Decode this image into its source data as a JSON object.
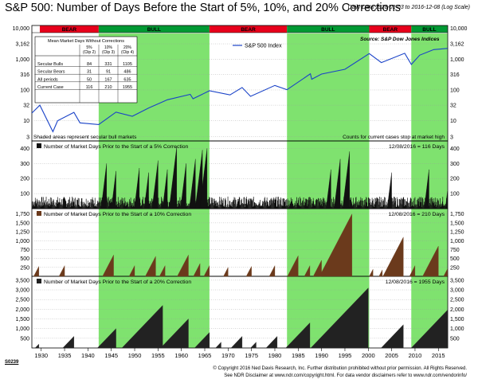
{
  "title": "S&P 500: Number of Days Before the Start of 5%, 10%, and 20% Corrections",
  "subtitle": "Daily Data 1928-01-03 to 2016-12-08 (Log Scale)",
  "colors": {
    "bear": "#e8001c",
    "bull": "#009933",
    "bull_shade": "#7fe26f",
    "sp_line": "#1a43c8",
    "bar5": "#111111",
    "bar10": "#6b3a1c",
    "bar20": "#222222"
  },
  "regimes": [
    {
      "label": "BEAR",
      "start": 1929.7,
      "end": 1942.3,
      "type": "bear"
    },
    {
      "label": "BULL",
      "start": 1942.3,
      "end": 1966.0,
      "type": "bull"
    },
    {
      "label": "BEAR",
      "start": 1966.0,
      "end": 1982.6,
      "type": "bear"
    },
    {
      "label": "BULL",
      "start": 1982.6,
      "end": 2000.2,
      "type": "bull"
    },
    {
      "label": "BEAR",
      "start": 2000.2,
      "end": 2009.2,
      "type": "bear"
    },
    {
      "label": "BULL",
      "start": 2009.2,
      "end": 2016.95,
      "type": "bull"
    }
  ],
  "top_panel": {
    "legend": "S&P 500 Index",
    "source": "Source:   S&P Dow Jones Indices",
    "note_left": "Shaded areas represent secular bull markets",
    "note_right": "Counts for current cases stop at market high",
    "yticks_label": [
      "10,000",
      "3,162",
      "1,000",
      "316",
      "100",
      "32",
      "10",
      "3"
    ],
    "yticks_value": [
      10000,
      3162,
      1000,
      316,
      100,
      32,
      10,
      3
    ],
    "table": {
      "title": "Mean Market Days Without Corrections",
      "headers": [
        "5% (Clip 2)",
        "10% (Clip 3)",
        "20% (Clip 4)"
      ],
      "rows": [
        {
          "label": "Secular Bulls",
          "values": [
            "84",
            "331",
            "1105"
          ]
        },
        {
          "label": "Secular Bears",
          "values": [
            "31",
            "91",
            "486"
          ]
        },
        {
          "label": "All periods",
          "values": [
            "50",
            "167",
            "635"
          ]
        },
        {
          "label": "Current Case",
          "values": [
            "116",
            "210",
            "1955"
          ]
        }
      ]
    }
  },
  "panel5": {
    "legend": "Number of Market Days Prior to the Start of a 5% Correction",
    "current": "12/08/2016 = 116 Days",
    "yticks": [
      "400",
      "300",
      "200",
      "100"
    ]
  },
  "panel10": {
    "legend": "Number of Market Days Prior to the Start of a 10% Correction",
    "current": "12/08/2016 = 210 Days",
    "yticks": [
      "1,750",
      "1,500",
      "1,250",
      "1,000",
      "750",
      "500",
      "250"
    ]
  },
  "panel20": {
    "legend": "Number of Market Days Prior to the Start of a 20% Correction",
    "current": "12/08/2016 = 1955 Days",
    "yticks": [
      "3,500",
      "3,000",
      "2,500",
      "2,000",
      "1,500",
      "1,000",
      "500"
    ]
  },
  "xaxis": {
    "labels": [
      "1930",
      "1935",
      "1940",
      "1945",
      "1950",
      "1955",
      "1960",
      "1965",
      "1970",
      "1975",
      "1980",
      "1985",
      "1990",
      "1995",
      "2000",
      "2005",
      "2010",
      "2015"
    ]
  },
  "code": "S0239",
  "footer": [
    "© Copyright 2016 Ned Davis Research, Inc. Further distribution prohibited without prior permission. All Rights Reserved.",
    "See NDR Disclaimer at www.ndr.com/copyright.html. For data vendor disclaimers refer to www.ndr.com/vendorinfo/"
  ],
  "chart_data": [
    {
      "type": "line",
      "title": "S&P 500 Index",
      "yscale": "log",
      "ylim": [
        3,
        10000
      ],
      "xlim": [
        1928,
        2017
      ],
      "x": [
        1928,
        1929.7,
        1932.5,
        1933.5,
        1937,
        1938.3,
        1942.3,
        1946,
        1949.5,
        1953,
        1957,
        1961.9,
        1962.5,
        1966,
        1970.4,
        1973,
        1974.8,
        1980,
        1982.6,
        1987.6,
        1987.9,
        1990,
        1995,
        2000.2,
        2002.8,
        2007.8,
        2009.2,
        2011,
        2014,
        2016.95
      ],
      "y": [
        17.7,
        31.9,
        4.4,
        10,
        18.7,
        8.5,
        7.5,
        19,
        14,
        26,
        48,
        72,
        52,
        94,
        69,
        120,
        62,
        140,
        102,
        336,
        224,
        330,
        470,
        1527,
        777,
        1565,
        677,
        1350,
        2050,
        2241
      ]
    },
    {
      "type": "bar",
      "title": "Number of Market Days Prior to the Start of a 5% Correction",
      "ylim": [
        0,
        450
      ],
      "xlim": [
        1928,
        2017
      ],
      "x": [
        1944,
        1946,
        1951,
        1953,
        1955,
        1957,
        1959,
        1961,
        1963,
        1964.5,
        1965.5,
        1992,
        1994,
        1996,
        2005,
        2013,
        2016.95
      ],
      "values": [
        300,
        250,
        270,
        240,
        320,
        260,
        410,
        300,
        330,
        390,
        400,
        260,
        330,
        380,
        240,
        260,
        116
      ]
    },
    {
      "type": "area",
      "title": "Number of Market Days Prior to the Start of a 10% Correction",
      "ylim": [
        0,
        1900
      ],
      "xlim": [
        1928,
        2017
      ],
      "x": [
        1929.5,
        1935,
        1945.5,
        1950,
        1954.5,
        1956.5,
        1961.5,
        1964,
        1966,
        1970,
        1975,
        1980,
        1985,
        1987.5,
        1990,
        1996.5,
        2001,
        2003,
        2007.5,
        2010,
        2015,
        2016.95
      ],
      "values": [
        280,
        300,
        600,
        300,
        560,
        300,
        600,
        360,
        300,
        250,
        280,
        300,
        580,
        300,
        450,
        1750,
        200,
        180,
        1100,
        300,
        850,
        210
      ]
    },
    {
      "type": "area",
      "title": "Number of Market Days Prior to the Start of a 20% Correction",
      "ylim": [
        0,
        3700
      ],
      "xlim": [
        1928,
        2017
      ],
      "x": [
        1929.5,
        1937,
        1946,
        1956,
        1961.5,
        1966,
        1968.5,
        1973,
        1976,
        1980.5,
        1987.5,
        2000,
        2007.5,
        2016.95
      ],
      "values": [
        200,
        600,
        1000,
        2200,
        1500,
        800,
        300,
        600,
        300,
        600,
        1300,
        3100,
        1200,
        1955
      ]
    }
  ]
}
